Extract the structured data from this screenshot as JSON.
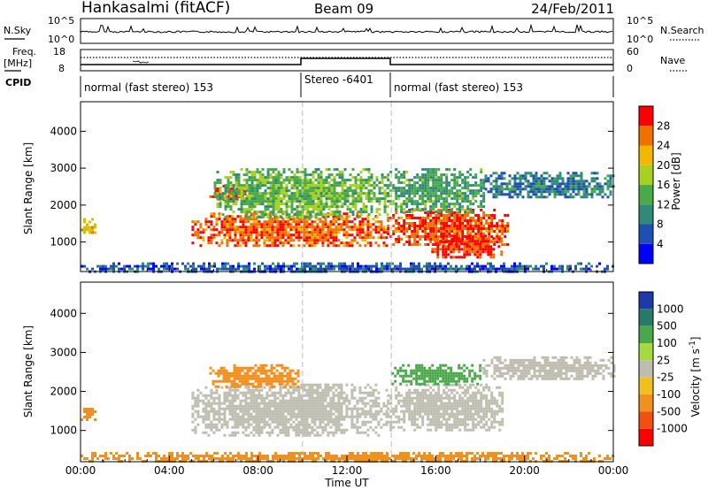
{
  "header": {
    "station": "Hankasalmi (fitACF)",
    "beam": "Beam 09",
    "date": "24/Feb/2011"
  },
  "noise_panel": {
    "left_label": "N.Sky",
    "right_label": "N.Search",
    "top_tick": "10^5",
    "bottom_tick": "10^0"
  },
  "freq_panel": {
    "left_label_1": "Freq.",
    "left_label_2": "[MHz]",
    "left_top_tick": "18",
    "left_bottom_tick": "8",
    "right_label": "Nave",
    "right_top_tick": "60",
    "right_bottom_tick": "0"
  },
  "cpid": {
    "label": "CPID",
    "segments": [
      "normal (fast stereo) 153",
      "Stereo -6401",
      "normal (fast stereo) 153"
    ]
  },
  "colors": {
    "power_scale": [
      "#0000ff",
      "#1f4fb4",
      "#2f8a78",
      "#4aaa4a",
      "#a8d020",
      "#f2b800",
      "#f07000",
      "#ff0000"
    ],
    "velocity_scale": [
      "#1d3aa8",
      "#2a7a6a",
      "#4aa84a",
      "#a6d840",
      "#bdbdb0",
      "#f0c020",
      "#f09020",
      "#f05010",
      "#ff0000"
    ]
  },
  "chart_data": [
    {
      "type": "heatmap",
      "title": "Power",
      "xlabel": "",
      "ylabel": "Slant Range [km]",
      "xlim": [
        "00:00",
        "24:00"
      ],
      "ylim": [
        200,
        4800
      ],
      "x_ticks": [
        "00:00",
        "04:00",
        "08:00",
        "12:00",
        "16:00",
        "20:00",
        "00:00"
      ],
      "y_ticks": [
        "1000",
        "2000",
        "3000",
        "4000"
      ],
      "colorbar": {
        "label": "Power [dB]",
        "ticks": [
          "4",
          "8",
          "12",
          "16",
          "20",
          "24",
          "28"
        ],
        "range": [
          0,
          30
        ]
      },
      "regions": [
        {
          "start_h": 0.0,
          "end_h": 0.6,
          "range_km": [
            1250,
            1650
          ],
          "value": 20
        },
        {
          "start_h": 5.0,
          "end_h": 13.8,
          "range_km": [
            900,
            1800
          ],
          "value": 25
        },
        {
          "start_h": 5.8,
          "end_h": 7.4,
          "range_km": [
            2150,
            2550
          ],
          "value": 28
        },
        {
          "start_h": 6.0,
          "end_h": 13.8,
          "range_km": [
            1700,
            3000
          ],
          "value": 14
        },
        {
          "start_h": 13.8,
          "end_h": 19.2,
          "range_km": [
            900,
            1900
          ],
          "value": 26
        },
        {
          "start_h": 15.8,
          "end_h": 19.0,
          "range_km": [
            600,
            1200
          ],
          "value": 27
        },
        {
          "start_h": 13.8,
          "end_h": 18.2,
          "range_km": [
            1800,
            3000
          ],
          "value": 12
        },
        {
          "start_h": 18.2,
          "end_h": 24.0,
          "range_km": [
            2200,
            2900
          ],
          "value": 8
        },
        {
          "start_h": 0.0,
          "end_h": 24.0,
          "range_km": [
            200,
            450
          ],
          "value": 6
        }
      ]
    },
    {
      "type": "heatmap",
      "title": "Velocity",
      "xlabel": "Time UT",
      "ylabel": "Slant Range [km]",
      "xlim": [
        "00:00",
        "24:00"
      ],
      "ylim": [
        200,
        4800
      ],
      "x_ticks": [
        "00:00",
        "04:00",
        "08:00",
        "12:00",
        "16:00",
        "20:00",
        "00:00"
      ],
      "y_ticks": [
        "1000",
        "2000",
        "3000",
        "4000"
      ],
      "colorbar": {
        "label": "Velocity [m s^-1]",
        "ticks": [
          "1000",
          "500",
          "100",
          "25",
          "-25",
          "-100",
          "-500",
          "-1000"
        ]
      },
      "regions": [
        {
          "start_h": 0.0,
          "end_h": 0.6,
          "range_km": [
            1250,
            1650
          ],
          "value": -150
        },
        {
          "start_h": 5.0,
          "end_h": 13.8,
          "range_km": [
            900,
            2200
          ],
          "value": 0
        },
        {
          "start_h": 5.8,
          "end_h": 9.8,
          "range_km": [
            2100,
            2700
          ],
          "value": -300
        },
        {
          "start_h": 13.8,
          "end_h": 19.0,
          "range_km": [
            1000,
            2200
          ],
          "value": 0
        },
        {
          "start_h": 14.0,
          "end_h": 18.0,
          "range_km": [
            2200,
            2700
          ],
          "value": 120
        },
        {
          "start_h": 18.0,
          "end_h": 24.0,
          "range_km": [
            2300,
            2900
          ],
          "value": 0
        },
        {
          "start_h": 0.0,
          "end_h": 24.0,
          "range_km": [
            200,
            450
          ],
          "value": -200
        }
      ]
    }
  ]
}
